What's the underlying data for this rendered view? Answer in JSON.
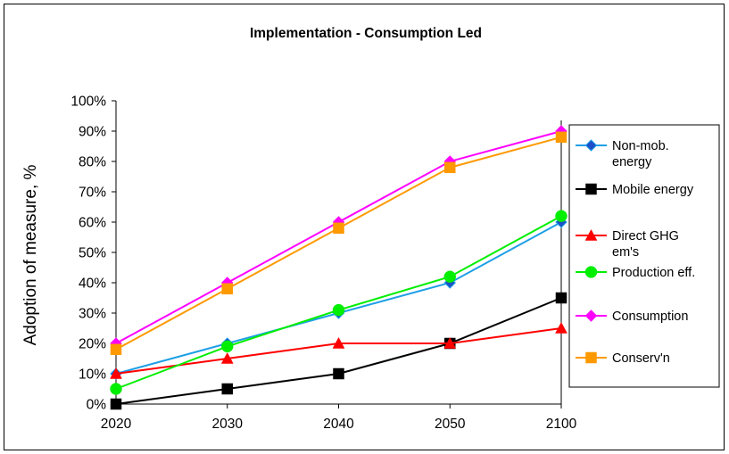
{
  "chart_data": {
    "type": "line",
    "title": "Implementation - Consumption Led",
    "ylabel": "Adoption of measure, %",
    "xlabel": "",
    "categories": [
      "2020",
      "2030",
      "2040",
      "2050",
      "2100"
    ],
    "yticks": [
      "0%",
      "10%",
      "20%",
      "30%",
      "40%",
      "50%",
      "60%",
      "70%",
      "80%",
      "90%",
      "100%"
    ],
    "ylim": [
      0,
      100
    ],
    "grid": false,
    "legend_position": "right",
    "series": [
      {
        "name": "Non-mob. energy",
        "legend_lines": [
          "Non-mob.",
          "energy"
        ],
        "values": [
          10,
          20,
          30,
          40,
          60
        ],
        "color": "#1e9fe6",
        "marker": "diamond",
        "marker_fill": "#1f4fc8"
      },
      {
        "name": "Mobile energy",
        "legend_lines": [
          "Mobile energy"
        ],
        "values": [
          0,
          5,
          10,
          20,
          35
        ],
        "color": "#000000",
        "marker": "square",
        "marker_fill": "#000000"
      },
      {
        "name": "Direct GHG em's",
        "legend_lines": [
          "Direct GHG",
          "em's"
        ],
        "values": [
          10,
          15,
          20,
          20,
          25
        ],
        "color": "#ff0000",
        "marker": "triangle",
        "marker_fill": "#ff0000"
      },
      {
        "name": "Production eff.",
        "legend_lines": [
          "Production eff."
        ],
        "values": [
          5,
          19,
          31,
          42,
          62
        ],
        "color": "#00ee00",
        "marker": "circle",
        "marker_fill": "#00ee00"
      },
      {
        "name": "Consumption",
        "legend_lines": [
          "Consumption"
        ],
        "values": [
          20,
          40,
          60,
          80,
          90
        ],
        "color": "#ff00ff",
        "marker": "diamond",
        "marker_fill": "#ff00ff"
      },
      {
        "name": "Conserv'n",
        "legend_lines": [
          "Conserv'n"
        ],
        "values": [
          18,
          38,
          58,
          78,
          88
        ],
        "color": "#ff9900",
        "marker": "square",
        "marker_fill": "#ff9900"
      }
    ]
  }
}
